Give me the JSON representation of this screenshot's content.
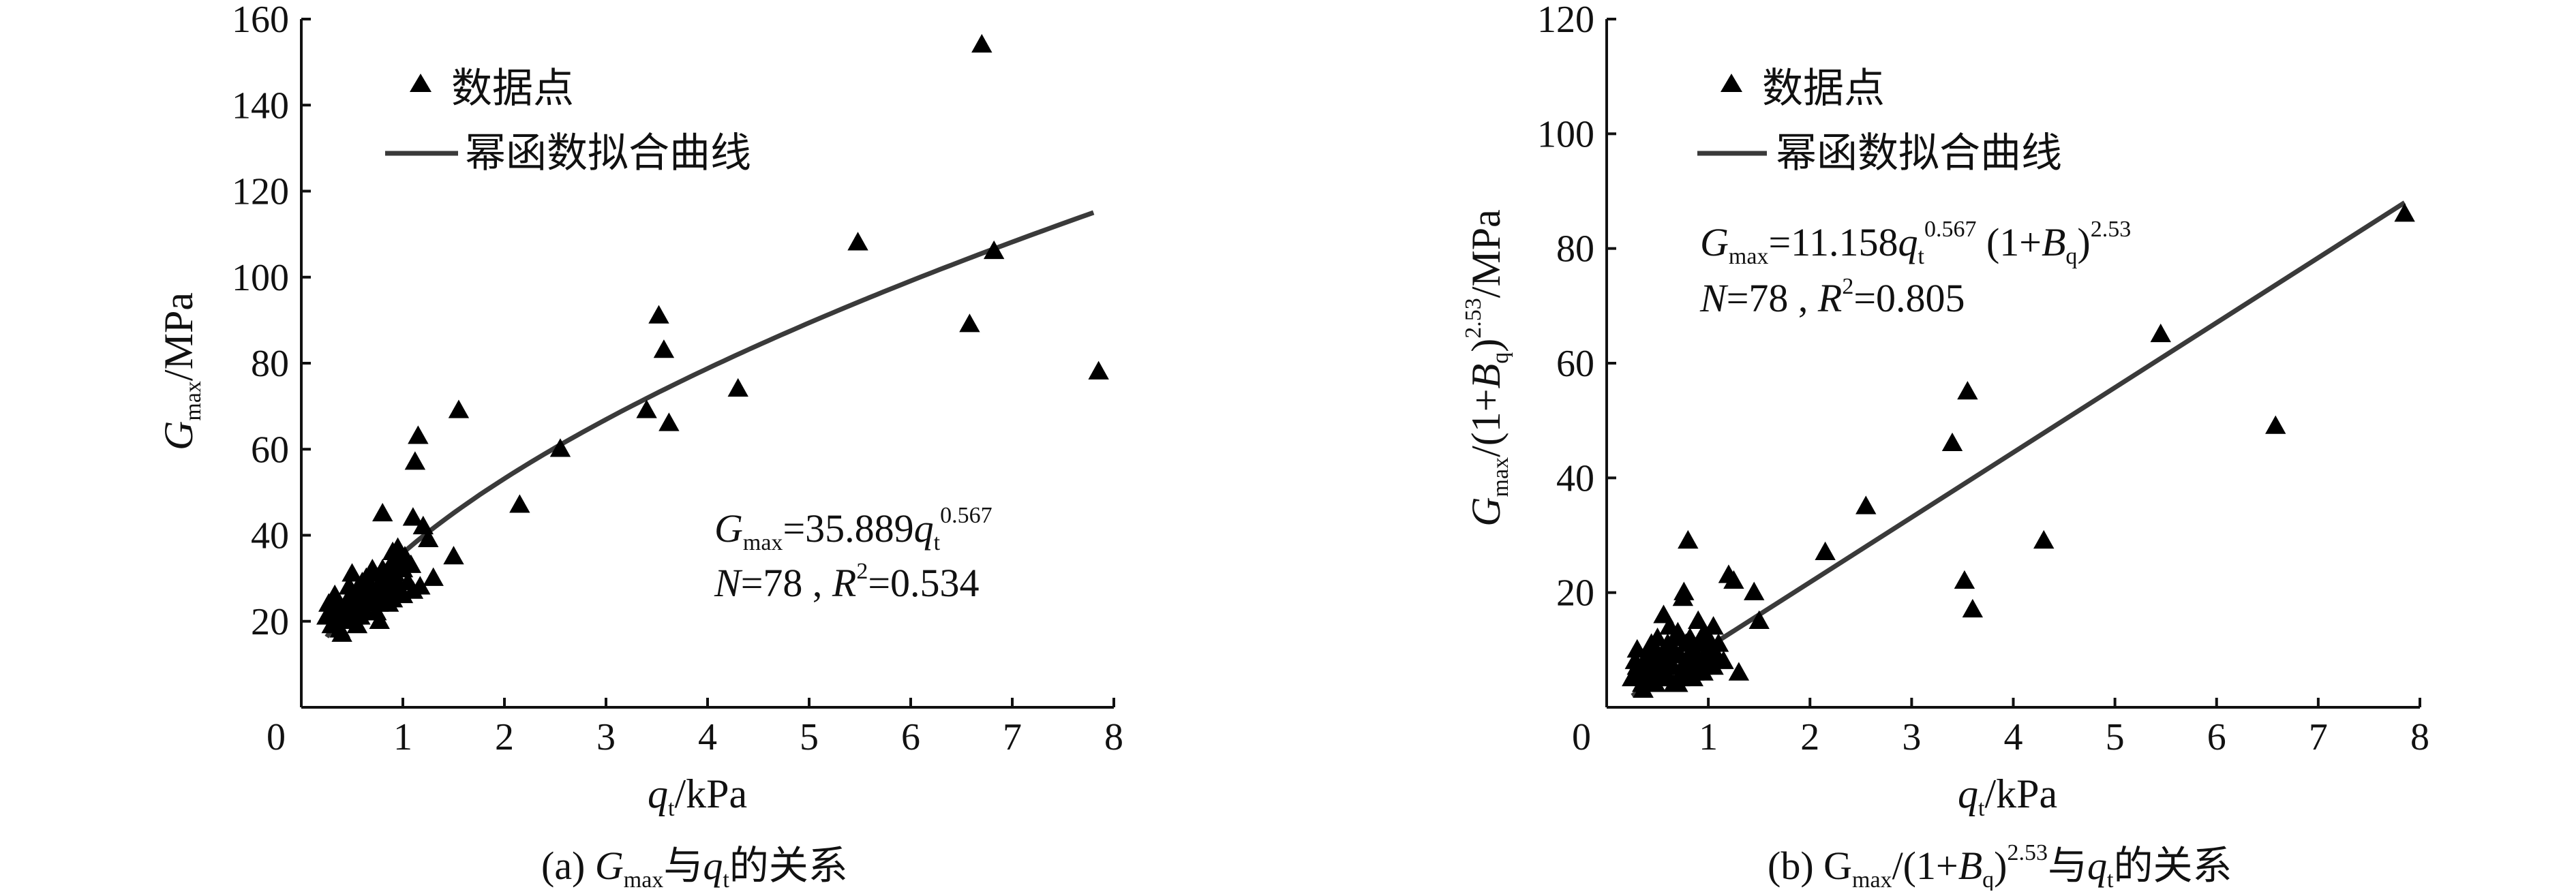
{
  "colors": {
    "axis": "#111111",
    "curve": "#3a3a3a",
    "marker": "#000000"
  },
  "chart_data": [
    {
      "type": "scatter",
      "id": "a",
      "xlabel": {
        "sym": "q",
        "sub": "t",
        "unit": "/kPa"
      },
      "ylabel": {
        "sym": "G",
        "sub": "max",
        "unit": "/MPa"
      },
      "xlim": [
        0,
        8
      ],
      "ylim": [
        0,
        160
      ],
      "xticks": [
        "0",
        "1",
        "2",
        "3",
        "4",
        "5",
        "6",
        "7",
        "8"
      ],
      "yticks": [
        "20",
        "40",
        "60",
        "80",
        "100",
        "120",
        "140",
        "160"
      ],
      "legend": {
        "points": "数据点",
        "curve": "幂函数拟合曲线",
        "marker_icon": "triangle-icon"
      },
      "equation": {
        "line1": {
          "sym": "G",
          "sub": "max",
          "mid": "=35.889",
          "var": "q",
          "varsub": "t",
          "exp": "0.567"
        },
        "line2": {
          "n_sym": "N",
          "n_val": "=78 , ",
          "r_sym": "R",
          "r_exp": "2",
          "r_val": "=0.534"
        }
      },
      "caption": {
        "pre": "(a) ",
        "sym": "G",
        "sub": "max",
        "mid": "与",
        "var": "q",
        "varsub": "t",
        "post": "的关系"
      },
      "fit": {
        "model": "power",
        "a": 35.889,
        "b": 0.567,
        "x_range": [
          0.25,
          7.8
        ]
      },
      "series": [
        {
          "name": "数据点",
          "points": [
            [
              0.25,
              21
            ],
            [
              0.27,
              24
            ],
            [
              0.3,
              19
            ],
            [
              0.32,
              22
            ],
            [
              0.35,
              20
            ],
            [
              0.36,
              24
            ],
            [
              0.38,
              18
            ],
            [
              0.4,
              21
            ],
            [
              0.42,
              23
            ],
            [
              0.44,
              20
            ],
            [
              0.46,
              25
            ],
            [
              0.48,
              22
            ],
            [
              0.5,
              24
            ],
            [
              0.5,
              31
            ],
            [
              0.52,
              21
            ],
            [
              0.54,
              27
            ],
            [
              0.56,
              23
            ],
            [
              0.58,
              26
            ],
            [
              0.6,
              29
            ],
            [
              0.62,
              24
            ],
            [
              0.64,
              30
            ],
            [
              0.66,
              26
            ],
            [
              0.68,
              28
            ],
            [
              0.7,
              25
            ],
            [
              0.72,
              31
            ],
            [
              0.74,
              22
            ],
            [
              0.75,
              27
            ],
            [
              0.76,
              24
            ],
            [
              0.78,
              29
            ],
            [
              0.8,
              32
            ],
            [
              0.8,
              45
            ],
            [
              0.82,
              26
            ],
            [
              0.84,
              30
            ],
            [
              0.86,
              28
            ],
            [
              0.88,
              33
            ],
            [
              0.9,
              25
            ],
            [
              0.92,
              31
            ],
            [
              0.94,
              29
            ],
            [
              0.96,
              34
            ],
            [
              0.98,
              27
            ],
            [
              1.0,
              32
            ],
            [
              1.02,
              35
            ],
            [
              1.05,
              29
            ],
            [
              1.08,
              33
            ],
            [
              1.1,
              27
            ],
            [
              1.1,
              44
            ],
            [
              1.12,
              57
            ],
            [
              1.15,
              63
            ],
            [
              1.2,
              42
            ],
            [
              1.25,
              39
            ],
            [
              1.3,
              30
            ],
            [
              1.5,
              35
            ],
            [
              1.55,
              69
            ],
            [
              2.15,
              47
            ],
            [
              2.55,
              60
            ],
            [
              3.4,
              69
            ],
            [
              3.52,
              91
            ],
            [
              3.57,
              83
            ],
            [
              3.62,
              66
            ],
            [
              4.3,
              74
            ],
            [
              5.48,
              108
            ],
            [
              6.58,
              89
            ],
            [
              6.7,
              154
            ],
            [
              6.82,
              106
            ],
            [
              7.85,
              78
            ],
            [
              0.58,
              21
            ],
            [
              0.7,
              32
            ],
            [
              0.95,
              37
            ],
            [
              0.4,
              17
            ],
            [
              0.63,
              22
            ],
            [
              0.86,
              24
            ],
            [
              1.0,
              26
            ],
            [
              0.33,
              26
            ],
            [
              0.55,
              19
            ],
            [
              0.77,
              20
            ],
            [
              0.9,
              36
            ],
            [
              1.17,
              28
            ],
            [
              0.47,
              28
            ]
          ]
        }
      ]
    },
    {
      "type": "scatter",
      "id": "b",
      "xlabel": {
        "sym": "q",
        "sub": "t",
        "unit": "/kPa"
      },
      "ylabel": {
        "pre": "G",
        "sub": "max",
        "mid": "/(1+",
        "sym2": "B",
        "sub2": "q",
        "close": ")",
        "exp": "2.53",
        "unit": "/MPa"
      },
      "xlim": [
        0,
        8
      ],
      "ylim": [
        0,
        120
      ],
      "xticks": [
        "0",
        "1",
        "2",
        "3",
        "4",
        "5",
        "6",
        "7",
        "8"
      ],
      "yticks": [
        "20",
        "40",
        "60",
        "80",
        "100",
        "120"
      ],
      "legend": {
        "points": "数据点",
        "curve": "幂函数拟合曲线",
        "marker_icon": "triangle-icon"
      },
      "equation": {
        "line1": {
          "sym": "G",
          "sub": "max",
          "mid": "=11.158",
          "var": "q",
          "varsub": "t",
          "exp": "0.567",
          "paren": " (1+",
          "b": "B",
          "bsub": "q",
          "close": ")",
          "exp2": "2.53"
        },
        "line2": {
          "n_sym": "N",
          "n_val": "=78 , ",
          "r_sym": "R",
          "r_exp": "2",
          "r_val": "=0.805"
        }
      },
      "caption": {
        "pre": "(b) G",
        "sub": "max",
        "mid": "/(1+",
        "b": "B",
        "bsub": "q",
        "close": ")",
        "exp": "2.53",
        "mid2": "与",
        "var": "q",
        "varsub": "t",
        "post": "的关系"
      },
      "fit": {
        "model": "line",
        "x_range": [
          0.25,
          7.85
        ],
        "y_range": [
          2,
          88
        ]
      },
      "series": [
        {
          "name": "数据点",
          "points": [
            [
              0.25,
              5
            ],
            [
              0.28,
              8
            ],
            [
              0.3,
              10
            ],
            [
              0.32,
              6
            ],
            [
              0.35,
              4
            ],
            [
              0.38,
              7
            ],
            [
              0.4,
              9
            ],
            [
              0.42,
              5
            ],
            [
              0.44,
              8
            ],
            [
              0.46,
              6
            ],
            [
              0.48,
              10
            ],
            [
              0.5,
              7
            ],
            [
              0.52,
              5
            ],
            [
              0.54,
              9
            ],
            [
              0.56,
              16
            ],
            [
              0.58,
              6
            ],
            [
              0.6,
              11
            ],
            [
              0.62,
              8
            ],
            [
              0.64,
              7
            ],
            [
              0.66,
              10
            ],
            [
              0.68,
              12
            ],
            [
              0.7,
              4
            ],
            [
              0.72,
              9
            ],
            [
              0.74,
              6
            ],
            [
              0.75,
              19
            ],
            [
              0.76,
              20
            ],
            [
              0.78,
              8
            ],
            [
              0.8,
              29
            ],
            [
              0.82,
              7
            ],
            [
              0.84,
              10
            ],
            [
              0.86,
              6
            ],
            [
              0.88,
              9
            ],
            [
              0.9,
              8
            ],
            [
              0.92,
              11
            ],
            [
              0.94,
              7
            ],
            [
              0.96,
              9
            ],
            [
              0.98,
              8
            ],
            [
              1.0,
              12
            ],
            [
              1.02,
              10
            ],
            [
              1.05,
              14
            ],
            [
              1.08,
              9
            ],
            [
              1.1,
              11
            ],
            [
              1.2,
              23
            ],
            [
              1.25,
              22
            ],
            [
              1.3,
              6
            ],
            [
              1.45,
              20
            ],
            [
              1.5,
              15
            ],
            [
              2.15,
              27
            ],
            [
              2.55,
              35
            ],
            [
              3.4,
              46
            ],
            [
              3.52,
              22
            ],
            [
              3.55,
              55
            ],
            [
              3.6,
              17
            ],
            [
              4.3,
              29
            ],
            [
              5.45,
              65
            ],
            [
              6.58,
              49
            ],
            [
              7.85,
              86
            ],
            [
              0.36,
              3
            ],
            [
              0.5,
              12
            ],
            [
              0.6,
              5
            ],
            [
              0.7,
              13
            ],
            [
              0.85,
              5
            ],
            [
              0.95,
              6
            ],
            [
              1.15,
              8
            ],
            [
              0.44,
              11
            ],
            [
              0.66,
              4
            ],
            [
              0.9,
              15
            ],
            [
              0.3,
              7
            ],
            [
              0.55,
              8
            ],
            [
              0.78,
              11
            ],
            [
              0.62,
              14
            ],
            [
              0.82,
              12
            ],
            [
              0.4,
              6
            ],
            [
              0.72,
              5
            ],
            [
              0.96,
              13
            ],
            [
              1.05,
              7
            ],
            [
              0.48,
              4
            ],
            [
              0.58,
              9
            ]
          ]
        }
      ]
    }
  ]
}
